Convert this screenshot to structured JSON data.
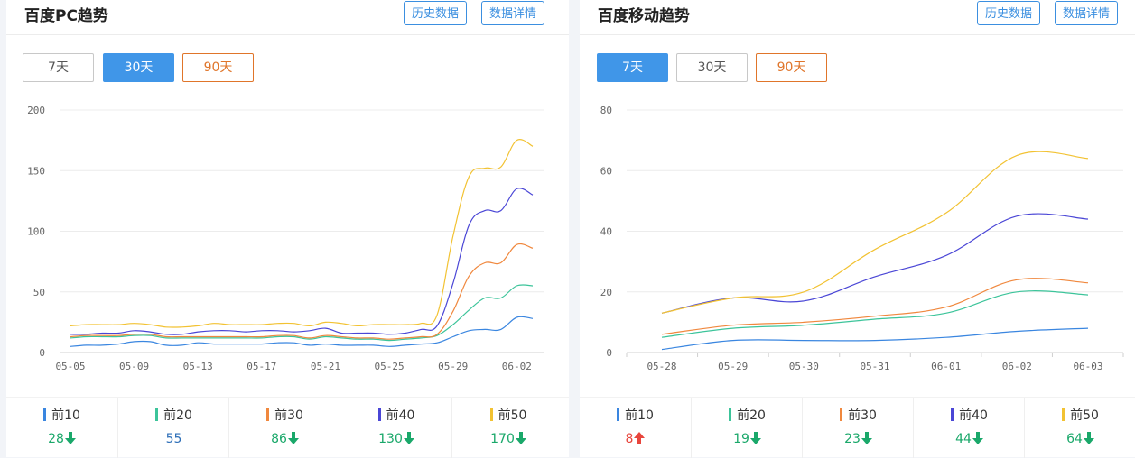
{
  "pc": {
    "title": "百度PC趋势",
    "history_label": "历史数据",
    "detail_label": "数据详情",
    "ranges": [
      "7天",
      "30天",
      "90天"
    ],
    "active_range": "30天",
    "legend": [
      {
        "label": "前10",
        "value": "28",
        "trend": "down"
      },
      {
        "label": "前20",
        "value": "55",
        "trend": "flat"
      },
      {
        "label": "前30",
        "value": "86",
        "trend": "down"
      },
      {
        "label": "前40",
        "value": "130",
        "trend": "down"
      },
      {
        "label": "前50",
        "value": "170",
        "trend": "down"
      }
    ]
  },
  "mobile": {
    "title": "百度移动趋势",
    "history_label": "历史数据",
    "detail_label": "数据详情",
    "ranges": [
      "7天",
      "30天",
      "90天"
    ],
    "active_range": "7天",
    "legend": [
      {
        "label": "前10",
        "value": "8",
        "trend": "up"
      },
      {
        "label": "前20",
        "value": "19",
        "trend": "down"
      },
      {
        "label": "前30",
        "value": "23",
        "trend": "down"
      },
      {
        "label": "前40",
        "value": "44",
        "trend": "down"
      },
      {
        "label": "前50",
        "value": "64",
        "trend": "down"
      }
    ]
  },
  "colors": {
    "top10": "#3a86e0",
    "top20": "#3cc49a",
    "top30": "#f0883e",
    "top40": "#4a46d6",
    "top50": "#f2c232",
    "down": "#1aa86a",
    "up": "#e8453c",
    "flat": "#2e6fb8"
  },
  "chart_data": [
    {
      "type": "line",
      "title": "百度PC趋势",
      "ylim": [
        0,
        200
      ],
      "yticks": [
        0,
        50,
        100,
        150,
        200
      ],
      "x": [
        "05-05",
        "05-06",
        "05-07",
        "05-08",
        "05-09",
        "05-10",
        "05-11",
        "05-12",
        "05-13",
        "05-14",
        "05-15",
        "05-16",
        "05-17",
        "05-18",
        "05-19",
        "05-20",
        "05-21",
        "05-22",
        "05-23",
        "05-24",
        "05-25",
        "05-26",
        "05-27",
        "05-28",
        "05-29",
        "05-30",
        "05-31",
        "06-01",
        "06-02",
        "06-03"
      ],
      "xtick_labels": [
        "05-05",
        "05-09",
        "05-13",
        "05-17",
        "05-21",
        "05-25",
        "05-29",
        "06-02"
      ],
      "grid": true,
      "series": [
        {
          "name": "前10",
          "values": [
            5,
            6,
            6,
            7,
            9,
            9,
            6,
            6,
            8,
            7,
            7,
            7,
            7,
            8,
            8,
            6,
            7,
            6,
            6,
            6,
            5,
            6,
            7,
            8,
            13,
            18,
            19,
            19,
            29,
            28
          ]
        },
        {
          "name": "前20",
          "values": [
            12,
            13,
            13,
            13,
            14,
            14,
            12,
            12,
            12,
            12,
            12,
            12,
            12,
            13,
            13,
            11,
            13,
            12,
            11,
            11,
            10,
            11,
            12,
            14,
            23,
            35,
            45,
            45,
            55,
            55
          ]
        },
        {
          "name": "前30",
          "values": [
            13,
            14,
            14,
            14,
            15,
            15,
            13,
            13,
            13,
            13,
            13,
            13,
            13,
            14,
            14,
            12,
            14,
            13,
            12,
            12,
            11,
            12,
            13,
            15,
            34,
            63,
            74,
            74,
            89,
            86
          ]
        },
        {
          "name": "前40",
          "values": [
            15,
            15,
            16,
            16,
            18,
            17,
            15,
            15,
            17,
            18,
            18,
            17,
            18,
            18,
            17,
            18,
            20,
            16,
            16,
            16,
            15,
            16,
            19,
            22,
            57,
            105,
            117,
            117,
            135,
            130
          ]
        },
        {
          "name": "前50",
          "values": [
            22,
            23,
            23,
            23,
            24,
            23,
            21,
            21,
            22,
            24,
            23,
            23,
            23,
            24,
            24,
            22,
            25,
            24,
            22,
            23,
            23,
            23,
            24,
            31,
            96,
            145,
            152,
            153,
            175,
            170
          ]
        }
      ]
    },
    {
      "type": "line",
      "title": "百度移动趋势",
      "ylim": [
        0,
        80
      ],
      "yticks": [
        0,
        20,
        40,
        60,
        80
      ],
      "x": [
        "05-28",
        "05-29",
        "05-30",
        "05-31",
        "06-01",
        "06-02",
        "06-03"
      ],
      "xtick_labels": [
        "05-28",
        "05-29",
        "05-30",
        "05-31",
        "06-01",
        "06-02",
        "06-03"
      ],
      "grid": true,
      "series": [
        {
          "name": "前10",
          "values": [
            1,
            4,
            4,
            4,
            5,
            7,
            8
          ]
        },
        {
          "name": "前20",
          "values": [
            5,
            8,
            9,
            11,
            13,
            20,
            19
          ]
        },
        {
          "name": "前30",
          "values": [
            6,
            9,
            10,
            12,
            15,
            24,
            23
          ]
        },
        {
          "name": "前40",
          "values": [
            13,
            18,
            17,
            25,
            32,
            45,
            44
          ]
        },
        {
          "name": "前50",
          "values": [
            13,
            18,
            20,
            34,
            46,
            65,
            64
          ]
        }
      ]
    }
  ]
}
